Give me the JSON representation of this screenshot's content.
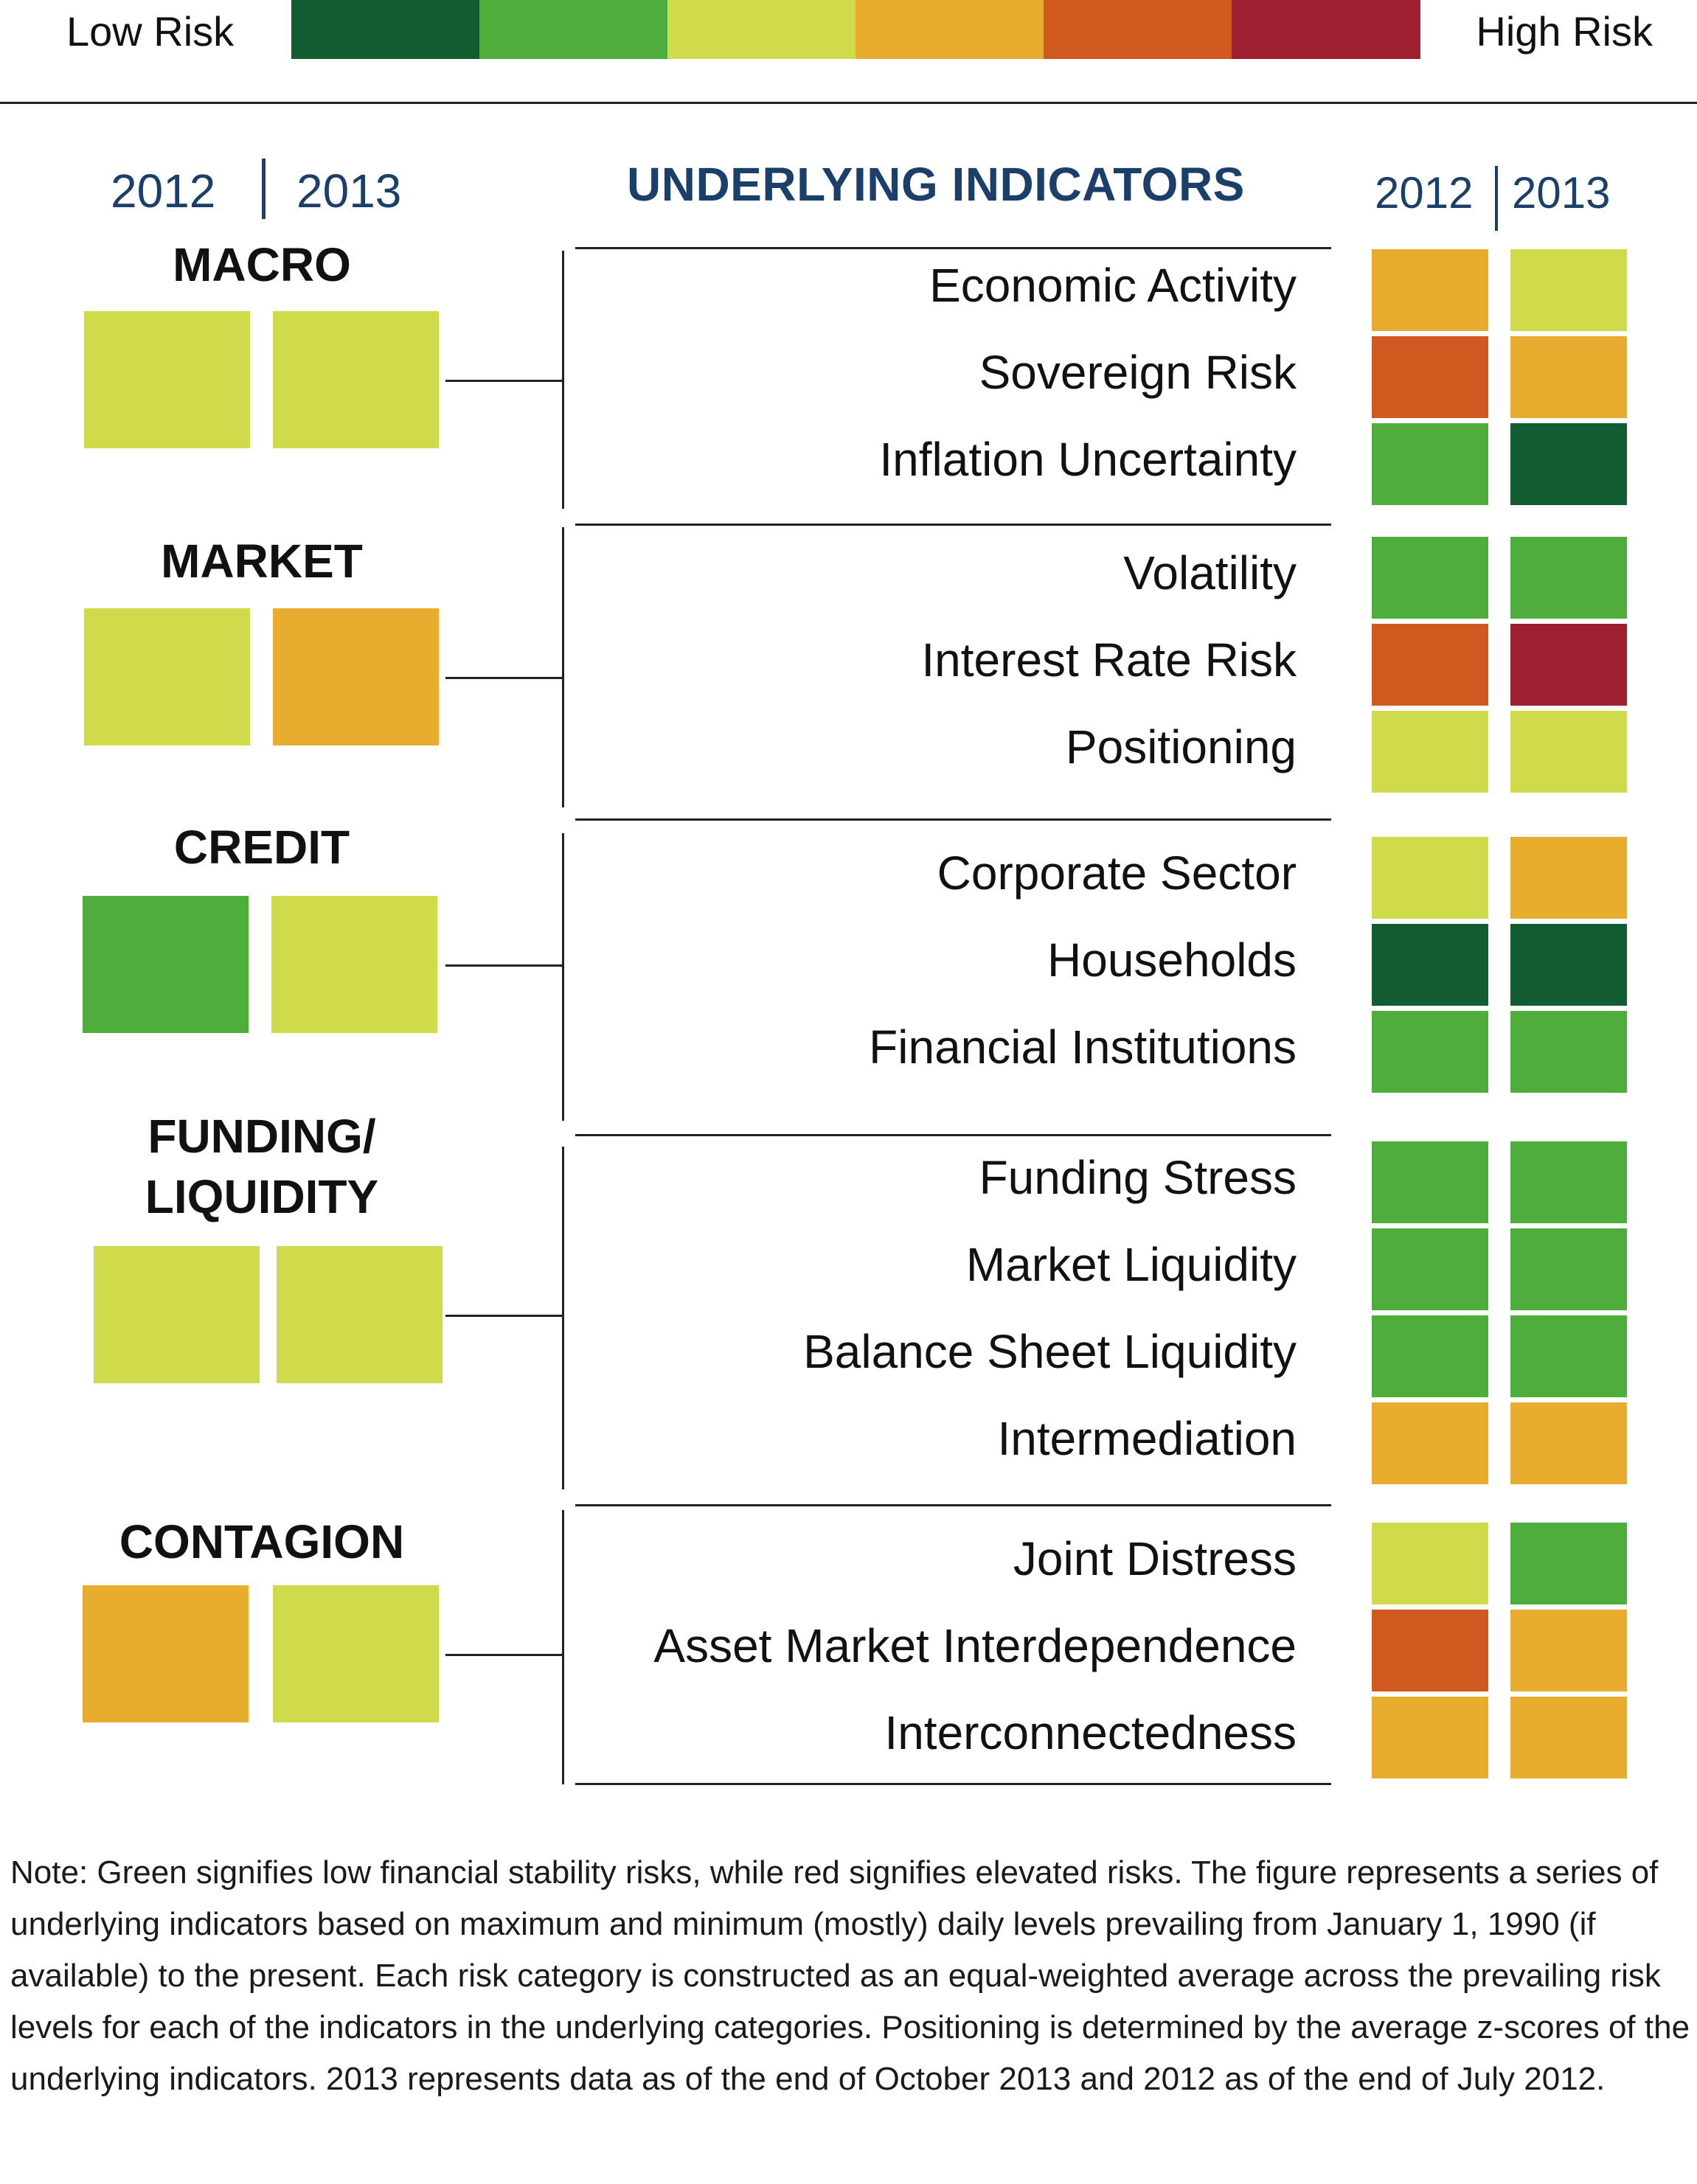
{
  "colors": {
    "dark_green": "#135c31",
    "green": "#4fad3c",
    "yellow_green": "#cfdb4a",
    "amber": "#e8ad2e",
    "orange": "#cf591e",
    "red": "#9e1f2f"
  },
  "legend": {
    "low_label": "Low Risk",
    "high_label": "High Risk",
    "scale": [
      "dark_green",
      "green",
      "yellow_green",
      "amber",
      "orange",
      "red"
    ]
  },
  "chart_data": {
    "type": "heatmap",
    "years": [
      "2012",
      "2013"
    ],
    "indicators_heading": "UNDERLYING INDICATORS",
    "risk_scale": [
      "dark_green",
      "green",
      "yellow_green",
      "amber",
      "orange",
      "red"
    ],
    "categories": [
      {
        "lines": [
          "MACRO"
        ],
        "level_2012": "yellow_green",
        "level_2013": "yellow_green",
        "indicators": [
          {
            "name": "Economic Activity",
            "level_2012": "amber",
            "level_2013": "yellow_green"
          },
          {
            "name": "Sovereign Risk",
            "level_2012": "orange",
            "level_2013": "amber"
          },
          {
            "name": "Inflation Uncertainty",
            "level_2012": "green",
            "level_2013": "dark_green"
          }
        ]
      },
      {
        "lines": [
          "MARKET"
        ],
        "level_2012": "yellow_green",
        "level_2013": "amber",
        "indicators": [
          {
            "name": "Volatility",
            "level_2012": "green",
            "level_2013": "green"
          },
          {
            "name": "Interest Rate Risk",
            "level_2012": "orange",
            "level_2013": "red"
          },
          {
            "name": "Positioning",
            "level_2012": "yellow_green",
            "level_2013": "yellow_green"
          }
        ]
      },
      {
        "lines": [
          "CREDIT"
        ],
        "level_2012": "green",
        "level_2013": "yellow_green",
        "indicators": [
          {
            "name": "Corporate Sector",
            "level_2012": "yellow_green",
            "level_2013": "amber"
          },
          {
            "name": "Households",
            "level_2012": "dark_green",
            "level_2013": "dark_green"
          },
          {
            "name": "Financial Institutions",
            "level_2012": "green",
            "level_2013": "green"
          }
        ]
      },
      {
        "lines": [
          "FUNDING/",
          "LIQUIDITY"
        ],
        "level_2012": "yellow_green",
        "level_2013": "yellow_green",
        "indicators": [
          {
            "name": "Funding Stress",
            "level_2012": "green",
            "level_2013": "green"
          },
          {
            "name": "Market Liquidity",
            "level_2012": "green",
            "level_2013": "green"
          },
          {
            "name": "Balance Sheet Liquidity",
            "level_2012": "green",
            "level_2013": "green"
          },
          {
            "name": "Intermediation",
            "level_2012": "amber",
            "level_2013": "amber"
          }
        ]
      },
      {
        "lines": [
          "CONTAGION"
        ],
        "level_2012": "amber",
        "level_2013": "yellow_green",
        "indicators": [
          {
            "name": "Joint Distress",
            "level_2012": "yellow_green",
            "level_2013": "green"
          },
          {
            "name": "Asset Market Interdependence",
            "level_2012": "orange",
            "level_2013": "amber"
          },
          {
            "name": "Interconnectedness",
            "level_2012": "amber",
            "level_2013": "amber"
          }
        ]
      }
    ]
  },
  "note": "Note: Green signifies low financial stability risks, while red signifies elevated risks. The figure represents a series of underlying indicators based on maximum and minimum (mostly) daily levels prevailing from January 1, 1990 (if available) to the present. Each risk category is constructed as an equal-weighted average across the prevailing risk levels for each of the indicators in the underlying categories. Positioning is determined by the average z-scores of the underlying indicators.  2013 represents data as of the end of October 2013 and 2012 as of the end of July 2012."
}
